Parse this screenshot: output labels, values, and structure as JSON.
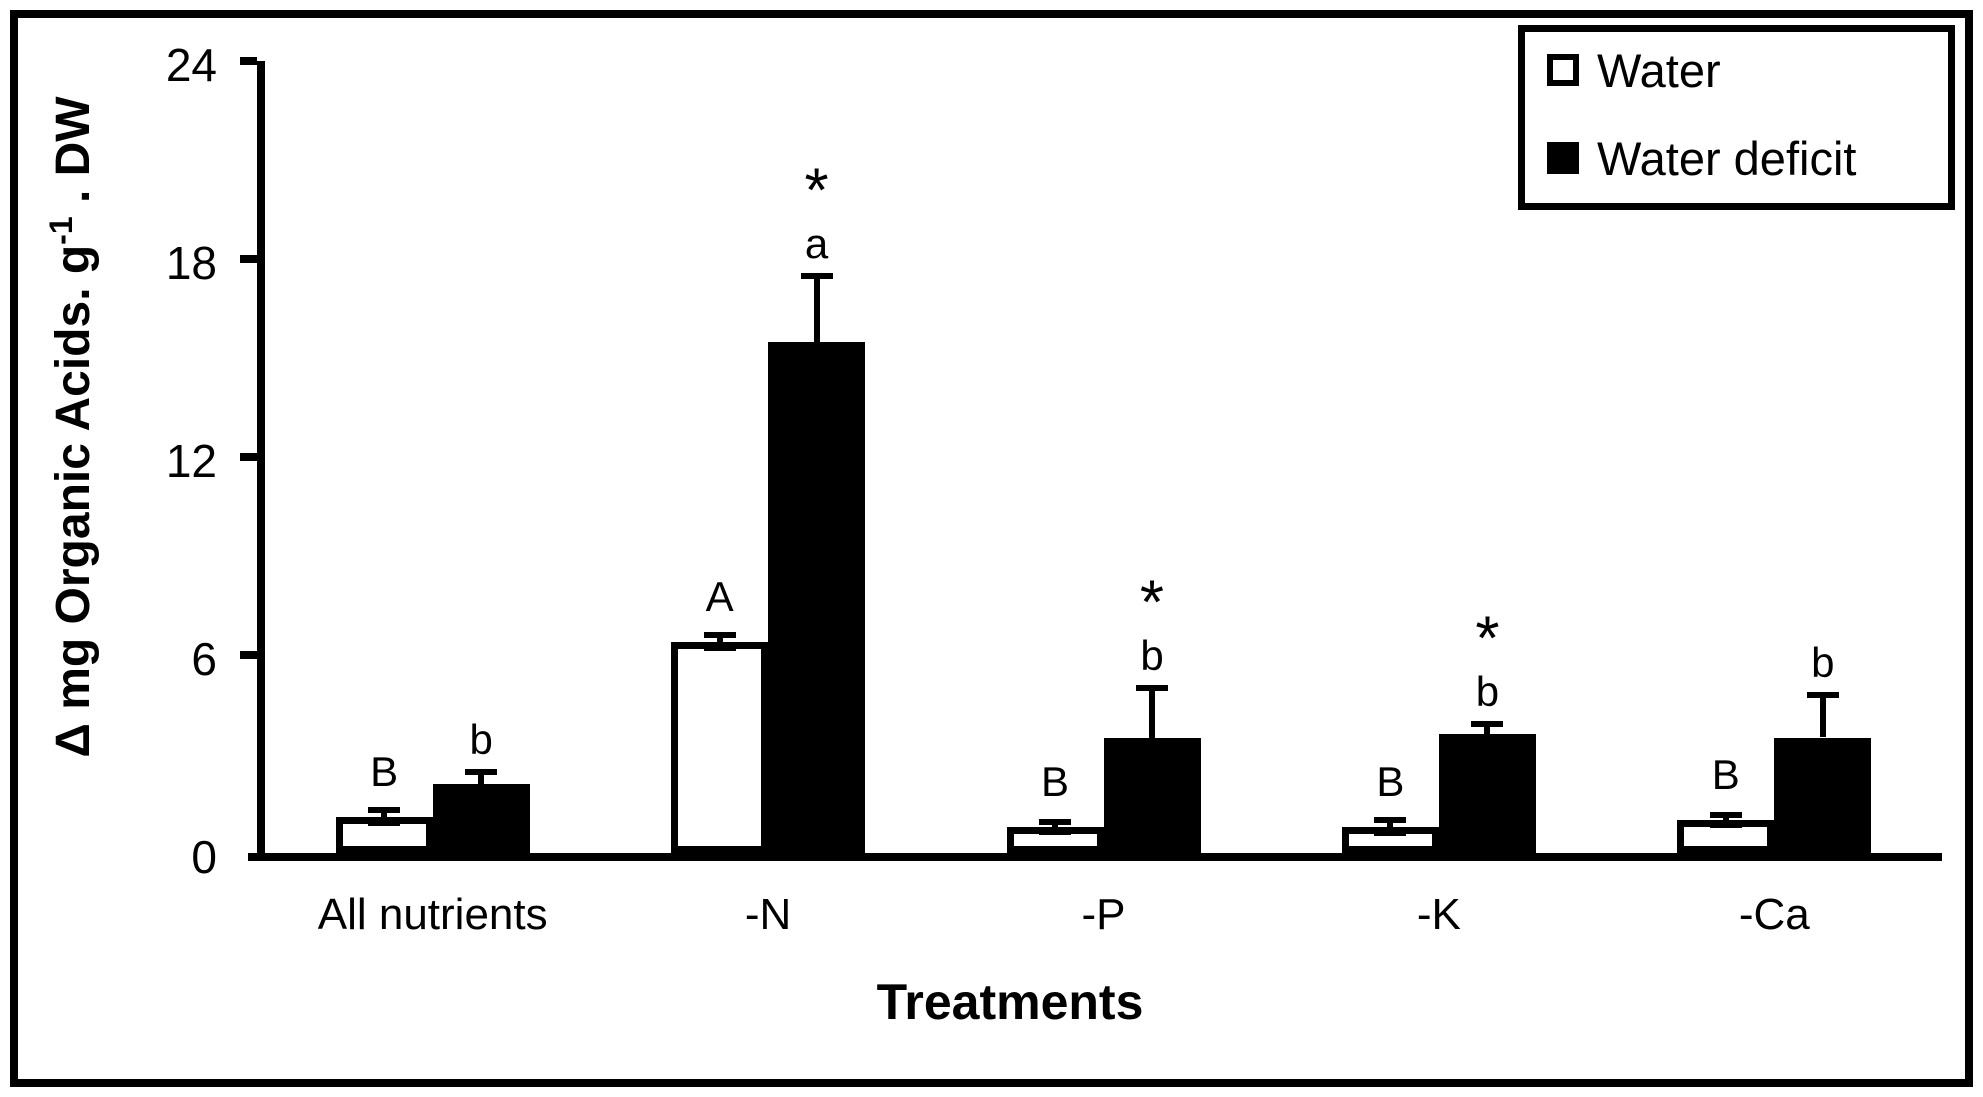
{
  "chart_data": {
    "type": "bar",
    "title": "",
    "xlabel": "Treatments",
    "ylabel": "Δ mg Organic Acids. g⁻¹ . DW",
    "ylabel_parts": {
      "prefix": "Δ mg Organic Acids. g",
      "superscript": "-1",
      "suffix": " . DW"
    },
    "ylim": [
      0,
      24
    ],
    "yticks": [
      0,
      6,
      12,
      18,
      24
    ],
    "categories": [
      "All nutrients",
      "-N",
      "-P",
      "-K",
      "-Ca"
    ],
    "grid": false,
    "legend_position": "top-right",
    "error_bars": true,
    "colors": {
      "axis": "#000000",
      "background": "#ffffff"
    },
    "series": [
      {
        "name": "Water",
        "fill": "#ffffff",
        "outline": "#000000",
        "values": [
          1.1,
          6.4,
          0.8,
          0.8,
          1.0
        ],
        "errors": [
          0.2,
          0.2,
          0.15,
          0.2,
          0.15
        ],
        "letters": [
          "B",
          "A",
          "B",
          "B",
          "B"
        ],
        "asterisks": [
          false,
          false,
          false,
          false,
          false
        ]
      },
      {
        "name": "Water deficit",
        "fill": "#000000",
        "outline": "#000000",
        "values": [
          2.1,
          15.5,
          3.5,
          3.6,
          3.5
        ],
        "errors": [
          0.35,
          2.0,
          1.5,
          0.3,
          1.3
        ],
        "letters": [
          "b",
          "a",
          "b",
          "b",
          "b"
        ],
        "asterisks": [
          false,
          true,
          true,
          true,
          false
        ]
      }
    ]
  }
}
